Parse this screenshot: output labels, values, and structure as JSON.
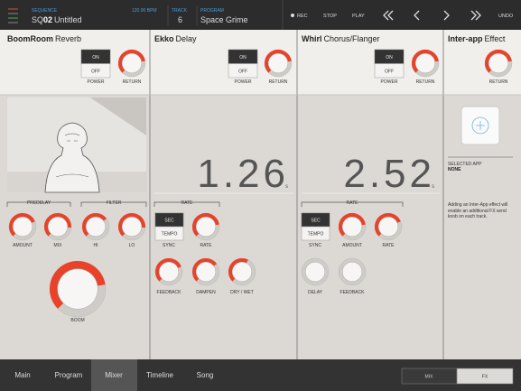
{
  "header": {
    "sequence_label": "SEQUENCE",
    "sequence_prefix": "SQ",
    "sequence_number": "02",
    "sequence_name": "Untitled",
    "bpm": "120.00 BPM",
    "track_label": "TRACK",
    "track": "6",
    "program_label": "PROGRAM",
    "program": "Space Grime",
    "rec": "REC",
    "stop": "STOP",
    "play": "PLAY",
    "undo": "UNDO"
  },
  "plugins": [
    {
      "name": "BoomRoom",
      "type": "Reverb",
      "on": "ON",
      "off": "OFF",
      "power": "POWER",
      "return": "RETURN",
      "predelay": "PREDELAY",
      "filter": "FILTER",
      "knobs": [
        "AMOUNT",
        "MIX",
        "HI",
        "LO"
      ],
      "boom": "BOOM"
    },
    {
      "name": "Ekko",
      "type": "Delay",
      "on": "ON",
      "off": "OFF",
      "power": "POWER",
      "return": "RETURN",
      "time": "1.26",
      "unit": "s",
      "rate_group": "RATE",
      "sec": "SEC",
      "tempo": "TEMPO",
      "sync": "SYNC",
      "rate": "RATE",
      "knobs": [
        "FEEDBACK",
        "DAMPEN",
        "DRY / WET"
      ]
    },
    {
      "name": "Whirl",
      "type": "Chorus/Flanger",
      "on": "ON",
      "off": "OFF",
      "power": "POWER",
      "return": "RETURN",
      "time": "2.52",
      "unit": "s",
      "rate_group": "RATE",
      "sec": "SEC",
      "tempo": "TEMPO",
      "sync": "SYNC",
      "amount": "AMOUNT",
      "rate": "RATE",
      "knobs": [
        "DELAY",
        "FEEDBACK"
      ]
    },
    {
      "name": "Inter-app",
      "type": "Effect",
      "return": "RETURN",
      "selected_app_label": "SELECTED APP",
      "selected_app": "NONE",
      "description": "Adding an Inter-App effect will enable an additional FX send knob on each track."
    }
  ],
  "footer": {
    "tabs": [
      "Main",
      "Program",
      "Mixer",
      "Timeline",
      "Song"
    ],
    "toggle": [
      "MIX",
      "FX"
    ]
  }
}
